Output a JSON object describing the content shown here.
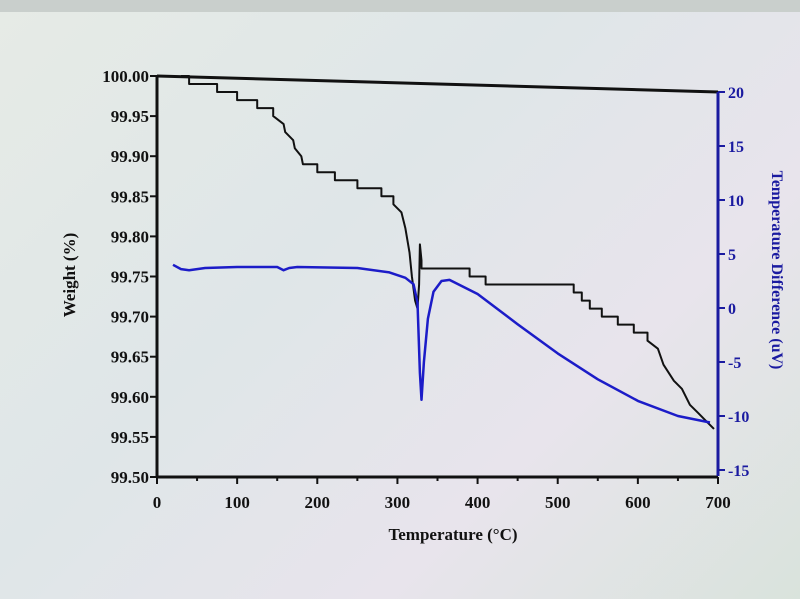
{
  "chart_data": {
    "type": "line",
    "xlabel": "Temperature (°C)",
    "ylabel": "Weight (%)",
    "y2label": "Temperature Difference (uV)",
    "xlim": [
      0,
      700
    ],
    "ylim": [
      99.5,
      100.0
    ],
    "y2lim": [
      -15,
      20
    ],
    "xticks": [
      "0",
      "100",
      "200",
      "300",
      "400",
      "500",
      "600",
      "700"
    ],
    "yticks": [
      "100.00",
      "99.95",
      "99.90",
      "99.85",
      "99.80",
      "99.75",
      "99.70",
      "99.65",
      "99.60",
      "99.55",
      "99.50"
    ],
    "y2ticks": [
      "20",
      "15",
      "10",
      "5",
      "0",
      "-5",
      "-10",
      "-15"
    ],
    "grid": false,
    "colors": {
      "weight": "#111111",
      "dta": "#1c1cc8",
      "right_axis": "#1a1aa0"
    },
    "series": [
      {
        "axis": "left",
        "x": [
          30,
          40,
          40,
          75,
          75,
          100,
          100,
          125,
          125,
          145,
          145,
          158,
          160,
          170,
          172,
          180,
          182,
          200,
          200,
          222,
          222,
          250,
          250,
          280,
          280,
          295,
          295,
          305,
          310,
          315,
          318,
          322,
          325,
          327,
          328,
          330,
          330,
          390,
          390,
          410,
          410,
          520,
          520,
          530,
          530,
          540,
          540,
          555,
          555,
          575,
          575,
          595,
          595,
          612,
          612,
          625,
          632,
          645,
          655,
          665,
          675,
          685,
          695
        ],
        "y": [
          100.0,
          100.0,
          99.99,
          99.99,
          99.98,
          99.98,
          99.97,
          99.97,
          99.96,
          99.96,
          99.95,
          99.94,
          99.93,
          99.92,
          99.91,
          99.9,
          99.89,
          99.89,
          99.88,
          99.88,
          99.87,
          99.87,
          99.86,
          99.86,
          99.85,
          99.85,
          99.84,
          99.83,
          99.81,
          99.78,
          99.75,
          99.72,
          99.71,
          99.74,
          99.79,
          99.77,
          99.76,
          99.76,
          99.75,
          99.75,
          99.74,
          99.74,
          99.73,
          99.73,
          99.72,
          99.72,
          99.71,
          99.71,
          99.7,
          99.7,
          99.69,
          99.69,
          99.68,
          99.68,
          99.67,
          99.66,
          99.64,
          99.62,
          99.61,
          99.59,
          99.58,
          99.57,
          99.56
        ]
      },
      {
        "axis": "right",
        "x": [
          20,
          30,
          40,
          60,
          100,
          150,
          158,
          165,
          175,
          250,
          290,
          310,
          320,
          325,
          328,
          330,
          333,
          338,
          345,
          355,
          365,
          400,
          450,
          500,
          550,
          600,
          650,
          690
        ],
        "y": [
          4.0,
          3.6,
          3.5,
          3.7,
          3.8,
          3.8,
          3.5,
          3.7,
          3.8,
          3.7,
          3.3,
          2.8,
          2.2,
          0.5,
          -6,
          -8.5,
          -5,
          -1,
          1.5,
          2.5,
          2.6,
          1.3,
          -1.5,
          -4.2,
          -6.6,
          -8.6,
          -10.0,
          -10.6
        ]
      }
    ]
  }
}
